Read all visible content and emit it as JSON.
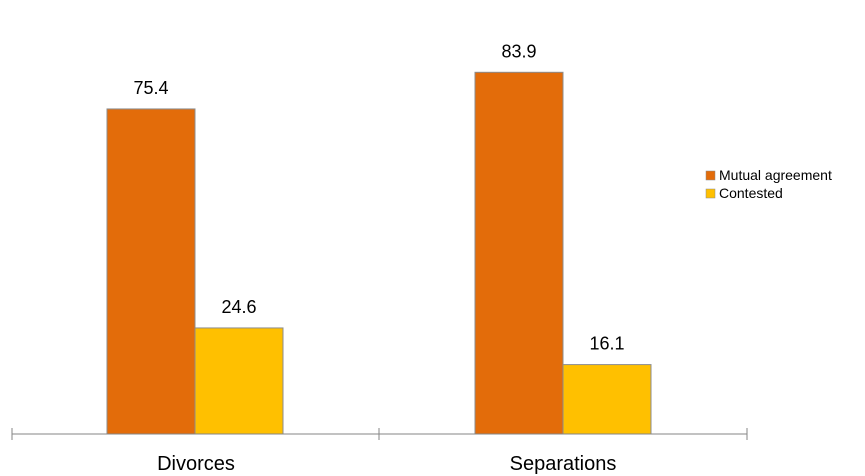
{
  "chart_data": {
    "type": "bar",
    "title": "",
    "xlabel": "",
    "ylabel": "",
    "categories": [
      "Divorces",
      "Separations"
    ],
    "series": [
      {
        "name": "Mutual agreement",
        "values": [
          75.4,
          83.9
        ],
        "color": "#E36C0A"
      },
      {
        "name": "Contested",
        "values": [
          24.6,
          16.1
        ],
        "color": "#FFC000"
      }
    ],
    "ylim": [
      0,
      90
    ],
    "grid": false,
    "legend": "right",
    "data_labels": true
  }
}
